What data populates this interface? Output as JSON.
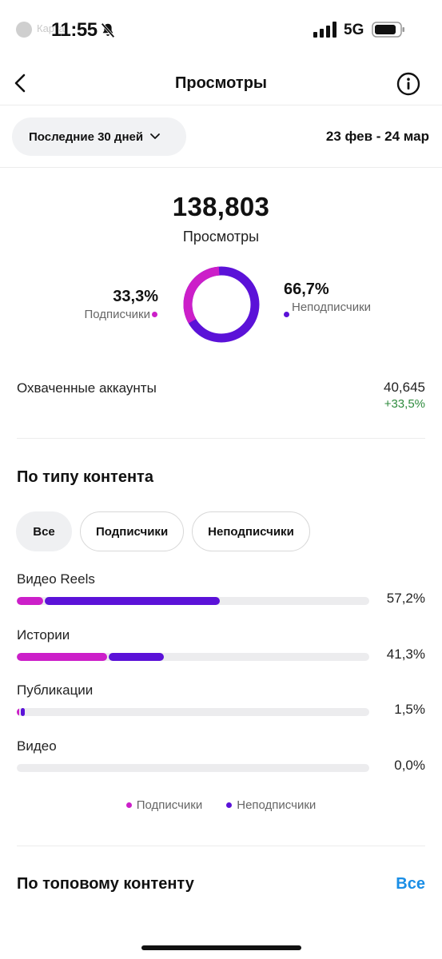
{
  "status_bar": {
    "carrier": "Карта",
    "time": "11:55",
    "network": "5G"
  },
  "header": {
    "title": "Просмотры",
    "back_icon": "chevron-left-icon",
    "info_icon": "info-icon"
  },
  "period": {
    "selector_label": "Последние 30 дней",
    "range": "23 фев - 24 мар"
  },
  "summary": {
    "total": "138,803",
    "total_label": "Просмотры",
    "followers_pct": "33,3%",
    "followers_label": "Подписчики",
    "non_followers_pct": "66,7%",
    "non_followers_label": "Неподписчики",
    "followers_share": 0.333,
    "colors": {
      "followers": "#cc1fc9",
      "non_followers": "#5b12d8"
    }
  },
  "reach": {
    "label": "Охваченные аккаунты",
    "value": "40,645",
    "delta": "+33,5%"
  },
  "content_type": {
    "title": "По типу контента",
    "filters": [
      "Все",
      "Подписчики",
      "Неподписчики"
    ],
    "active_filter": "Все",
    "rows": [
      {
        "name": "Видео Reels",
        "pct": "57,2%",
        "followers": 0.075,
        "non_followers": 0.497
      },
      {
        "name": "Истории",
        "pct": "41,3%",
        "followers": 0.257,
        "non_followers": 0.156
      },
      {
        "name": "Публикации",
        "pct": "1,5%",
        "followers": 0.004,
        "non_followers": 0.011
      },
      {
        "name": "Видео",
        "pct": "0,0%",
        "followers": 0,
        "non_followers": 0
      }
    ],
    "legend": {
      "followers": "Подписчики",
      "non_followers": "Неподписчики"
    }
  },
  "top_content": {
    "title": "По топовому контенту",
    "all_link": "Все"
  }
}
